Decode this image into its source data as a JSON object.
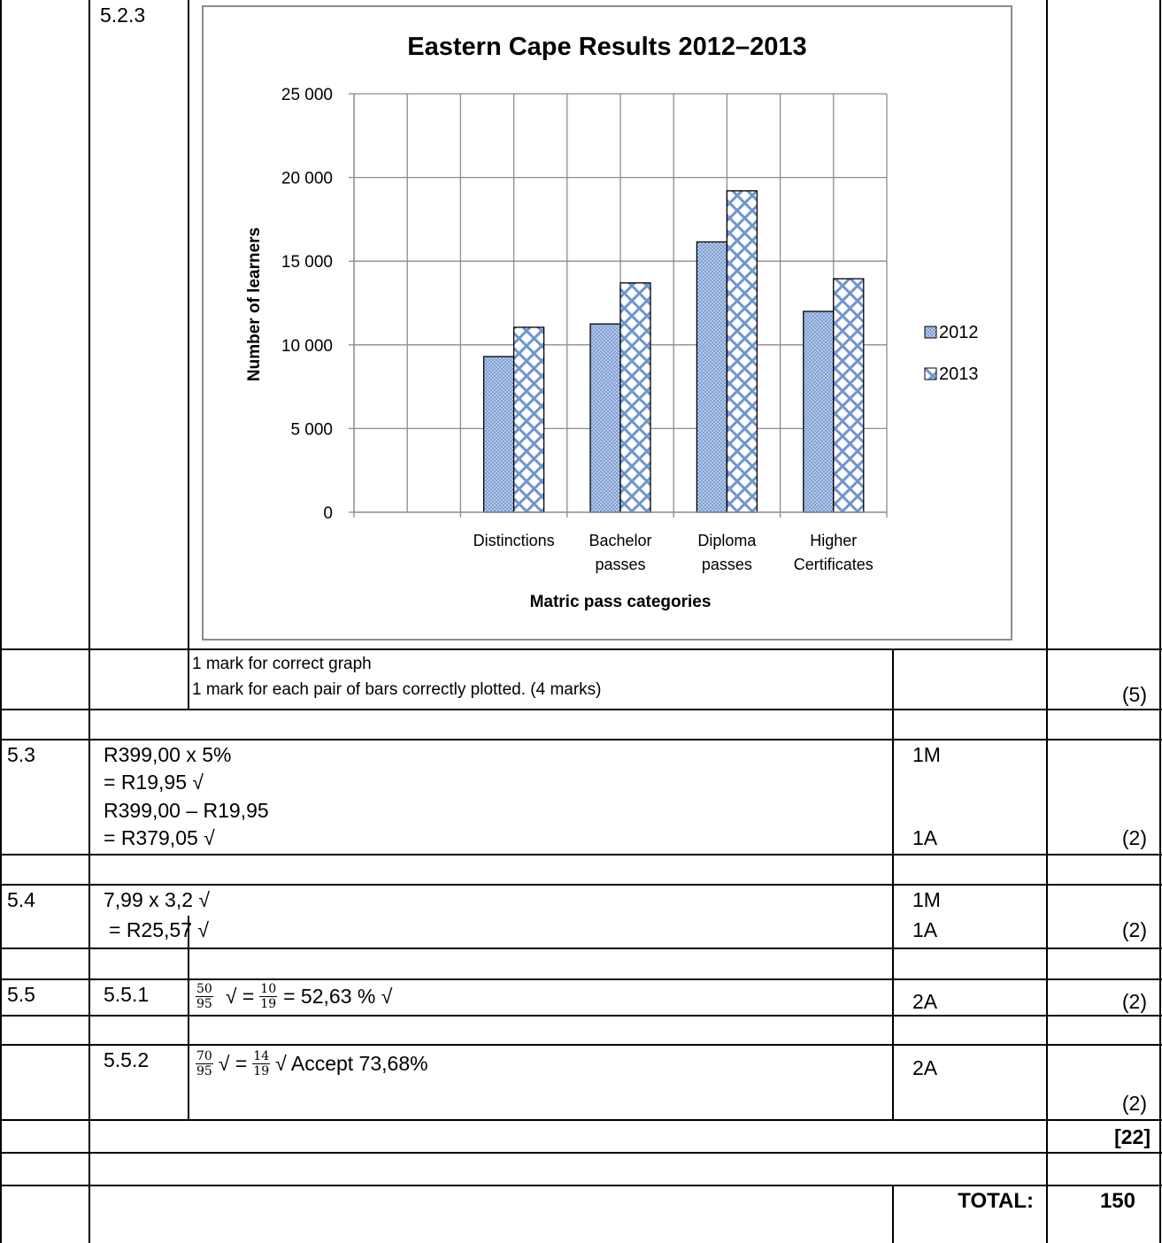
{
  "s523": {
    "label": "5.2.3",
    "mark_note_1": "1 mark for correct graph",
    "mark_note_2": "1 mark for each pair of bars correctly plotted. (4 marks)",
    "total": "(5)"
  },
  "s53": {
    "label": "5.3",
    "line1": "R399,00 x 5%",
    "line2": "= R19,95 √",
    "line3": "R399,00 – R19,95",
    "line4": "= R379,05 √",
    "mark1": "1M",
    "mark2": "1A",
    "total": "(2)"
  },
  "s54": {
    "label": "5.4",
    "line1": "7,99 x 3,2 √",
    "line2": "= R25,57 √",
    "mark1": "1M",
    "mark2": "1A",
    "total": "(2)"
  },
  "s55": {
    "label": "5.5",
    "q1": {
      "label": "5.5.1",
      "frac1_num": "50",
      "frac1_den": "95",
      "check1": "√ =",
      "frac2_num": "10",
      "frac2_den": "19",
      "tail": "= 52,63 % √",
      "mark": "2A",
      "total": "(2)"
    },
    "q2": {
      "label": "5.5.2",
      "frac1_num": "70",
      "frac1_den": "95",
      "check1": "√ =",
      "frac2_num": "14",
      "frac2_den": "19",
      "tail": "√ Accept 73,68%",
      "mark": "2A",
      "total": "(2)"
    }
  },
  "subtotal": "[22]",
  "total_label": "TOTAL:",
  "total_value": "150",
  "chart_data": {
    "type": "bar",
    "title": "Eastern Cape Results 2012–2013",
    "xlabel": "Matric pass categories",
    "ylabel": "Number of learners",
    "categories": [
      [
        "Distinctions"
      ],
      [
        "Bachelor",
        "passes"
      ],
      [
        "Diploma",
        "passes"
      ],
      [
        "Higher",
        "Certificates"
      ]
    ],
    "series": [
      {
        "name": "2012",
        "values": [
          9300,
          11250,
          16150,
          12000
        ],
        "color": "#95b3d7",
        "pattern": "fine-check"
      },
      {
        "name": "2013",
        "values": [
          11050,
          13700,
          19200,
          13950
        ],
        "color": "#c6d9f1",
        "pattern": "lattice"
      }
    ],
    "ylim": [
      0,
      25000
    ],
    "yticks": [
      "0",
      "5 000",
      "10 000",
      "15 000",
      "20 000",
      "25 000"
    ],
    "ytick_values": [
      0,
      5000,
      10000,
      15000,
      20000,
      25000
    ],
    "grid": true,
    "legend": "right"
  }
}
